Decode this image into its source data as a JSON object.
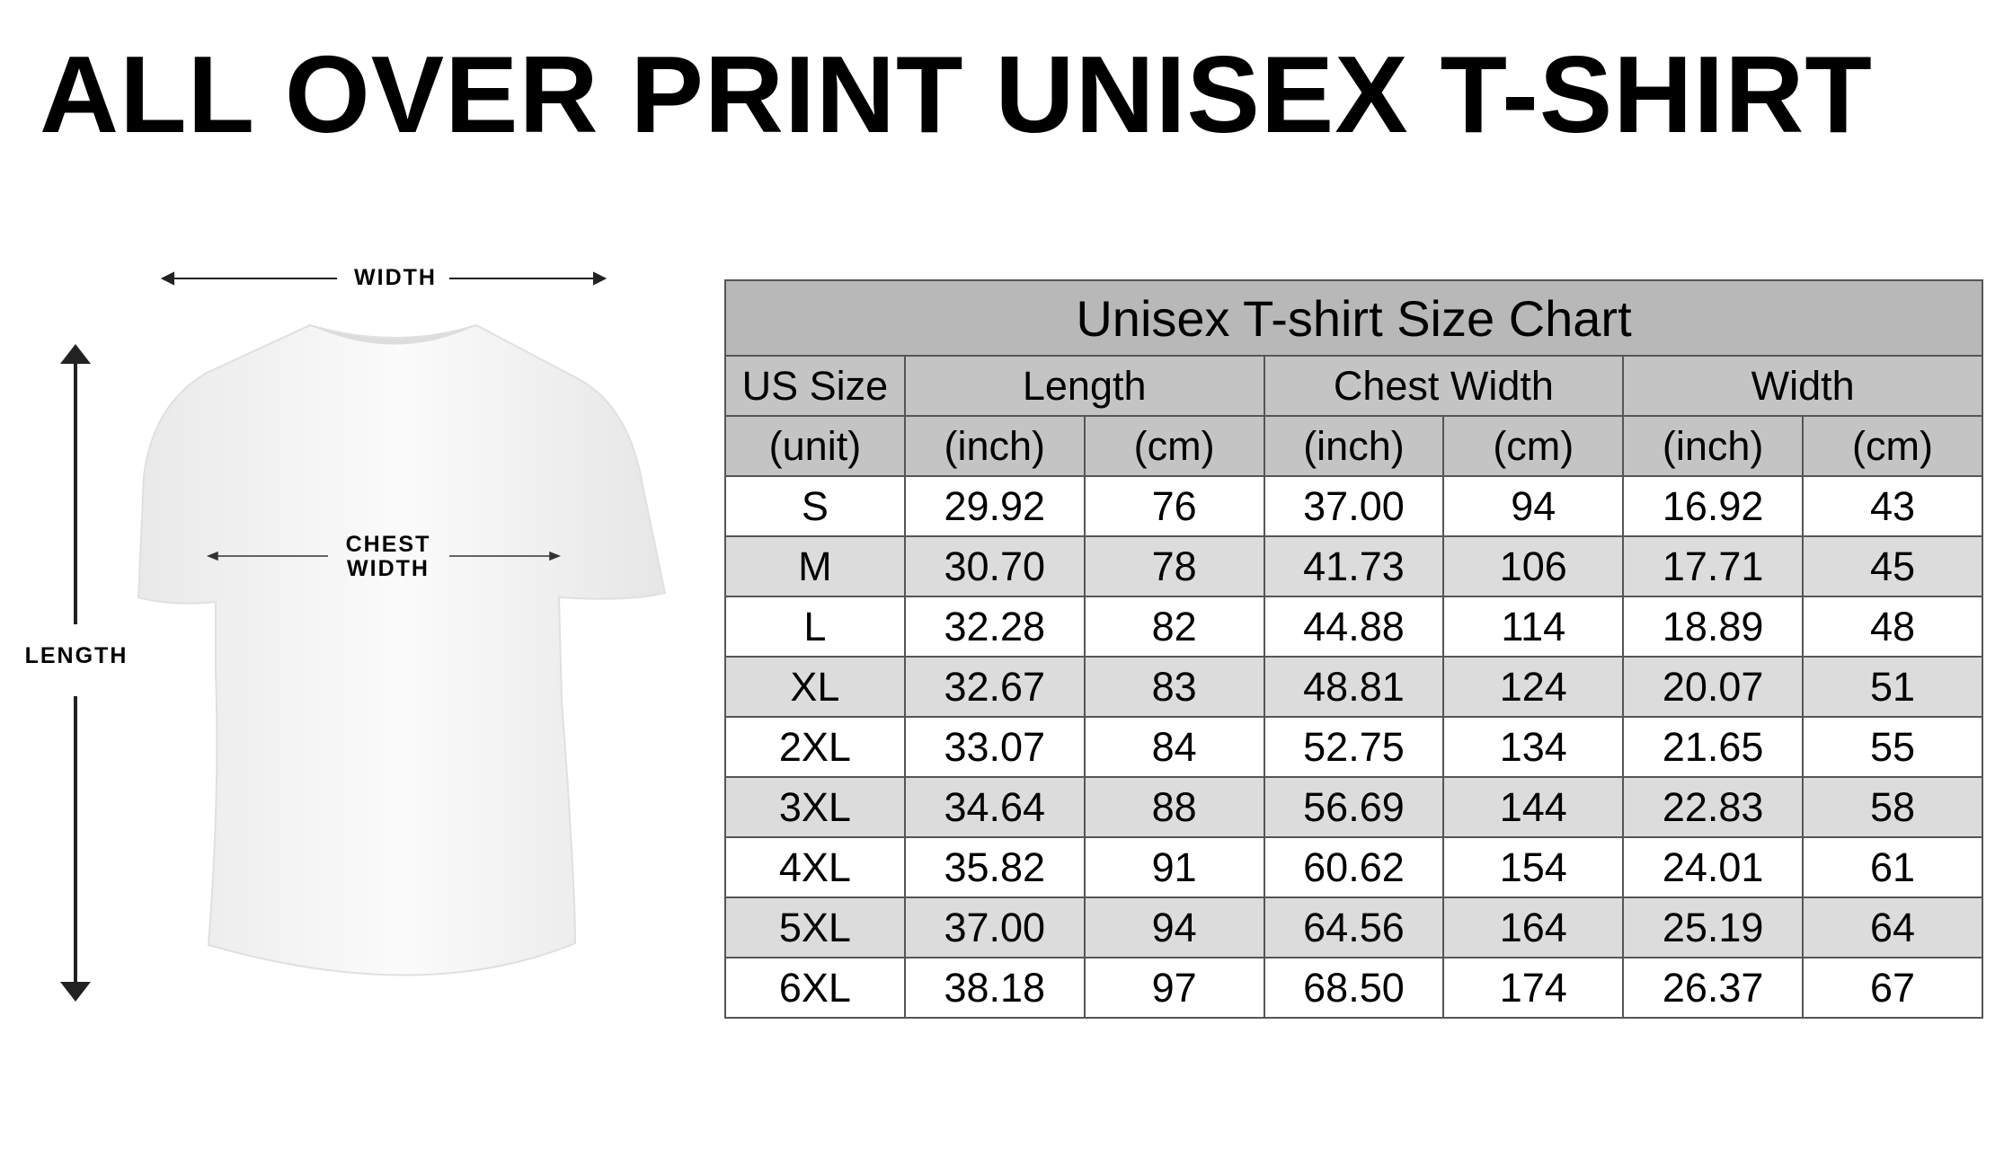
{
  "title": "ALL OVER PRINT UNISEX T-SHIRT",
  "diagram": {
    "width_label": "WIDTH",
    "chest_label_line1": "CHEST",
    "chest_label_line2": "WIDTH",
    "length_label": "LENGTH"
  },
  "size_chart": {
    "title": "Unisex T-shirt Size Chart",
    "groups": [
      "US Size",
      "Length",
      "Chest Width",
      "Width"
    ],
    "units": [
      "(unit)",
      "(inch)",
      "(cm)",
      "(inch)",
      "(cm)",
      "(inch)",
      "(cm)"
    ],
    "rows": [
      [
        "S",
        "29.92",
        "76",
        "37.00",
        "94",
        "16.92",
        "43"
      ],
      [
        "M",
        "30.70",
        "78",
        "41.73",
        "106",
        "17.71",
        "45"
      ],
      [
        "L",
        "32.28",
        "82",
        "44.88",
        "114",
        "18.89",
        "48"
      ],
      [
        "XL",
        "32.67",
        "83",
        "48.81",
        "124",
        "20.07",
        "51"
      ],
      [
        "2XL",
        "33.07",
        "84",
        "52.75",
        "134",
        "21.65",
        "55"
      ],
      [
        "3XL",
        "34.64",
        "88",
        "56.69",
        "144",
        "22.83",
        "58"
      ],
      [
        "4XL",
        "35.82",
        "91",
        "60.62",
        "154",
        "24.01",
        "61"
      ],
      [
        "5XL",
        "37.00",
        "94",
        "64.56",
        "164",
        "25.19",
        "64"
      ],
      [
        "6XL",
        "38.18",
        "97",
        "68.50",
        "174",
        "26.37",
        "67"
      ]
    ]
  }
}
